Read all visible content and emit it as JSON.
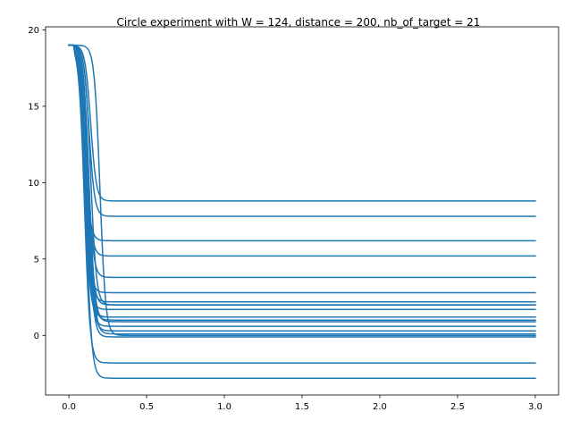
{
  "chart_data": {
    "type": "line",
    "title": "Circle experiment with W = 124, distance = 200, nb_of_target = 21",
    "xlabel": "",
    "ylabel": "",
    "xlim": [
      -0.15,
      3.15
    ],
    "ylim": [
      -3.9,
      20.2
    ],
    "x_ticks": [
      0.0,
      0.5,
      1.0,
      1.5,
      2.0,
      2.5,
      3.0
    ],
    "x_tick_labels": [
      "0.0",
      "0.5",
      "1.0",
      "1.5",
      "2.0",
      "2.5",
      "3.0"
    ],
    "y_ticks": [
      0,
      5,
      10,
      15,
      20
    ],
    "y_tick_labels": [
      "0",
      "5",
      "10",
      "15",
      "20"
    ],
    "grid": false,
    "legend": "none",
    "line_color": "#1f77b4",
    "x_end": 3.0,
    "start_value": 19,
    "series": [
      {
        "final": 8.8,
        "drop": 0.14,
        "settle": 0.33
      },
      {
        "final": 7.8,
        "drop": 0.13,
        "settle": 0.32
      },
      {
        "final": 6.2,
        "drop": 0.1,
        "settle": 0.31
      },
      {
        "final": 5.2,
        "drop": 0.11,
        "settle": 0.33
      },
      {
        "final": 3.8,
        "drop": 0.12,
        "settle": 0.36
      },
      {
        "final": 2.8,
        "drop": 0.1,
        "settle": 0.31
      },
      {
        "final": 2.2,
        "drop": 0.11,
        "settle": 0.3
      },
      {
        "final": 2.0,
        "drop": 0.12,
        "settle": 0.29
      },
      {
        "final": 1.7,
        "drop": 0.1,
        "settle": 0.28
      },
      {
        "final": 1.2,
        "drop": 0.11,
        "settle": 0.31
      },
      {
        "final": 1.0,
        "drop": 0.12,
        "settle": 0.32
      },
      {
        "final": 0.9,
        "drop": 0.13,
        "settle": 0.3
      },
      {
        "final": 0.6,
        "drop": 0.11,
        "settle": 0.29
      },
      {
        "final": 0.3,
        "drop": 0.12,
        "settle": 0.27
      },
      {
        "final": 0.1,
        "drop": 0.13,
        "settle": 0.26
      },
      {
        "final": 0.0,
        "drop": 0.2,
        "settle": 0.42
      },
      {
        "final": -0.1,
        "drop": 0.12,
        "settle": 0.25
      },
      {
        "final": -1.8,
        "drop": 0.1,
        "settle": 0.22
      },
      {
        "final": -2.8,
        "drop": 0.11,
        "settle": 0.24
      },
      {
        "final": 2.0,
        "drop": 0.14,
        "settle": 0.33
      },
      {
        "final": 1.2,
        "drop": 0.1,
        "settle": 0.26
      }
    ]
  }
}
